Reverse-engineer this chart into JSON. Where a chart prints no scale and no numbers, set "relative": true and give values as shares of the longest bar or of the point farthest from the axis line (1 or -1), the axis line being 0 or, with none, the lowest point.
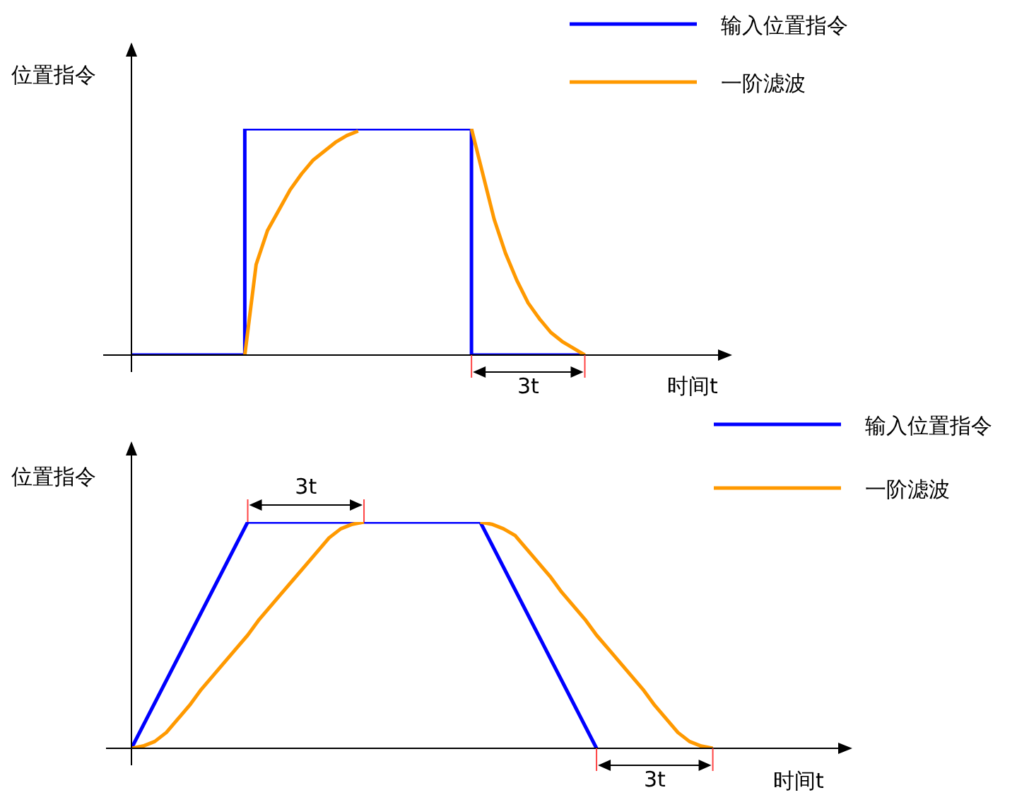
{
  "chart_data": [
    {
      "type": "line",
      "relative": true,
      "ylabel": "位置指令",
      "xlabel": "时间t",
      "legend": "top right",
      "annotations": [
        "3t"
      ],
      "categories": [
        null,
        null,
        null,
        null,
        null,
        null,
        null,
        null,
        null,
        null,
        null,
        null,
        null,
        null,
        null,
        null,
        null,
        null,
        null,
        null,
        null,
        null,
        null,
        null,
        null,
        null,
        null,
        null,
        null,
        null,
        null,
        null,
        null,
        null,
        null,
        null,
        null,
        null,
        null,
        null,
        null,
        null,
        null,
        null,
        null,
        null,
        null,
        null,
        null,
        null,
        null,
        null,
        null,
        null
      ],
      "series": [
        {
          "name": "输入位置指令",
          "type": "step",
          "color": "#0000ff",
          "values": [
            0,
            0,
            0,
            0,
            0,
            0,
            0,
            0,
            0,
            0,
            1,
            1,
            1,
            1,
            1,
            1,
            1,
            1,
            1,
            1,
            1,
            1,
            1,
            1,
            1,
            1,
            1,
            1,
            1,
            1,
            0,
            0,
            0,
            0,
            0,
            0,
            0,
            0,
            0,
            0,
            0,
            null,
            null,
            null,
            null,
            null,
            null,
            null,
            null,
            null,
            null,
            null,
            null,
            null
          ]
        },
        {
          "name": "一阶滤波",
          "color": "#ff9900",
          "values": [
            null,
            null,
            null,
            null,
            null,
            null,
            null,
            null,
            null,
            null,
            0,
            0.4,
            0.55,
            0.64,
            0.73,
            0.8,
            0.86,
            0.9,
            0.94,
            0.97,
            0.99,
            null,
            null,
            null,
            null,
            null,
            null,
            null,
            null,
            null,
            1,
            0.8,
            0.6,
            0.45,
            0.33,
            0.23,
            0.16,
            0.1,
            0.06,
            0.03,
            0,
            null,
            null,
            null,
            null,
            null,
            null,
            null,
            null,
            null,
            null,
            null,
            null,
            null
          ]
        }
      ]
    },
    {
      "type": "line",
      "relative": true,
      "ylabel": "位置指令",
      "xlabel": "时间t",
      "legend": "top right",
      "annotations": [
        "3t",
        "3t"
      ],
      "categories": [
        null,
        null,
        null,
        null,
        null,
        null,
        null,
        null,
        null,
        null,
        null,
        null,
        null,
        null,
        null,
        null,
        null,
        null,
        null,
        null,
        null,
        null,
        null,
        null,
        null,
        null,
        null,
        null,
        null,
        null,
        null,
        null,
        null,
        null,
        null,
        null,
        null,
        null,
        null,
        null,
        null,
        null,
        null,
        null,
        null,
        null,
        null,
        null,
        null,
        null,
        null,
        null,
        null,
        null,
        null,
        null,
        null,
        null,
        null,
        null,
        null,
        null,
        null
      ],
      "series": [
        {
          "name": "输入位置指令",
          "color": "#0000ff",
          "values": [
            0,
            0.1,
            0.2,
            0.3,
            0.4,
            0.5,
            0.6,
            0.7,
            0.8,
            0.9,
            1,
            1,
            1,
            1,
            1,
            1,
            1,
            1,
            1,
            1,
            1,
            1,
            1,
            1,
            1,
            1,
            1,
            1,
            1,
            1,
            1,
            0.9,
            0.8,
            0.7,
            0.6,
            0.5,
            0.4,
            0.3,
            0.2,
            0.1,
            0,
            null,
            null,
            null,
            null,
            null,
            null,
            null,
            null,
            null,
            null,
            null,
            null,
            null,
            null,
            null,
            null,
            null,
            null,
            null,
            null,
            null,
            null
          ]
        },
        {
          "name": "一阶滤波",
          "color": "#ff9900",
          "values": [
            0,
            0.01,
            0.03,
            0.07,
            0.13,
            0.19,
            0.26,
            0.32,
            0.38,
            0.44,
            0.5,
            0.57,
            0.63,
            0.69,
            0.75,
            0.81,
            0.87,
            0.93,
            0.97,
            0.99,
            1,
            null,
            null,
            null,
            null,
            null,
            null,
            null,
            null,
            null,
            1,
            0.99,
            0.97,
            0.94,
            0.88,
            0.82,
            0.76,
            0.69,
            0.63,
            0.57,
            0.5,
            0.44,
            0.38,
            0.32,
            0.26,
            0.19,
            0.13,
            0.07,
            0.03,
            0.01,
            0,
            null,
            null,
            null,
            null,
            null,
            null,
            null,
            null,
            null,
            null,
            null,
            null
          ]
        }
      ]
    }
  ]
}
